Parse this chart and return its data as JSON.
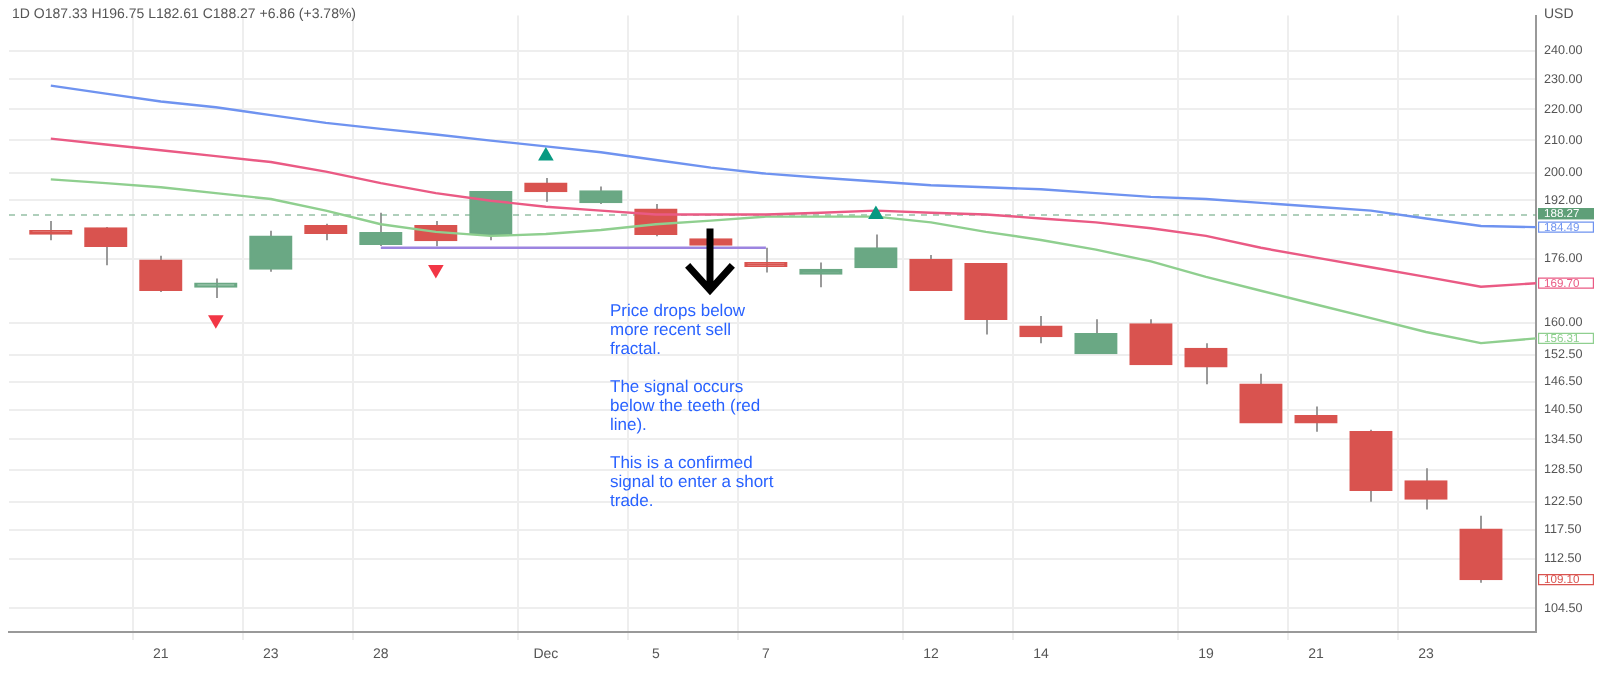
{
  "chart_data": {
    "type": "candlestick",
    "title": "1D O187.33 H196.75 L182.61 C188.27 +6.86 (+3.78%)",
    "ylabel": "USD",
    "categories": [
      null,
      null,
      "21",
      null,
      "23",
      null,
      "28",
      null,
      null,
      "Dec",
      null,
      "5",
      null,
      "7",
      null,
      null,
      "12",
      null,
      "14",
      null,
      null,
      "19",
      null,
      "21",
      null,
      "23",
      null,
      null
    ],
    "ohlc": [
      [
        183.5,
        186.2,
        180.9,
        182.6
      ],
      [
        184.3,
        184.5,
        174.3,
        179.3
      ],
      [
        175.6,
        176.8,
        167.5,
        167.9
      ],
      [
        168.7,
        170.9,
        166.0,
        169.7
      ],
      [
        173.3,
        183.5,
        172.6,
        182.0
      ],
      [
        184.9,
        185.4,
        180.9,
        182.8
      ],
      [
        179.8,
        188.5,
        179.4,
        183.0
      ],
      [
        184.9,
        186.2,
        179.3,
        180.8
      ],
      [
        182.5,
        194.5,
        180.9,
        194.5
      ],
      [
        197.0,
        198.5,
        191.6,
        194.5
      ],
      [
        191.4,
        196.0,
        191.0,
        194.7
      ],
      [
        189.5,
        191.0,
        182.0,
        182.5
      ],
      [
        181.3,
        183.5,
        177.6,
        179.6
      ],
      [
        175.0,
        178.9,
        172.4,
        174.0
      ],
      [
        172.0,
        175.0,
        168.7,
        173.2
      ],
      [
        173.7,
        182.5,
        173.7,
        178.9
      ],
      [
        175.8,
        177.0,
        167.8,
        167.9
      ],
      [
        174.7,
        174.8,
        157.2,
        160.8
      ],
      [
        159.2,
        161.6,
        155.2,
        156.7
      ],
      [
        152.8,
        160.8,
        152.8,
        157.4
      ],
      [
        159.7,
        160.8,
        150.3,
        150.3
      ],
      [
        154.0,
        155.2,
        146.0,
        149.8
      ],
      [
        146.0,
        148.3,
        137.8,
        137.8
      ],
      [
        139.3,
        141.2,
        136.0,
        137.8
      ],
      [
        136.0,
        136.4,
        122.5,
        124.6
      ],
      [
        126.4,
        128.8,
        121.1,
        123.0
      ],
      [
        117.6,
        120.0,
        108.6,
        109.1
      ],
      null
    ],
    "colors": [
      "#d9534f",
      "#d9534f",
      "#d9534f",
      "#6aa884",
      "#6aa884",
      "#d9534f",
      "#6aa884",
      "#d9534f",
      "#6aa884",
      "#d9534f",
      "#6aa884",
      "#d9534f",
      "#d9534f",
      "#d9534f",
      "#6aa884",
      "#6aa884",
      "#d9534f",
      "#d9534f",
      "#d9534f",
      "#6aa884",
      "#d9534f",
      "#d9534f",
      "#d9534f",
      "#d9534f",
      "#d9534f",
      "#d9534f",
      "#d9534f",
      null
    ],
    "series": [
      {
        "type": "line",
        "color": "#6f93f0",
        "values": [
          227.8,
          225.1,
          222.5,
          220.6,
          218.0,
          215.5,
          213.6,
          211.8,
          209.9,
          208.1,
          206.3,
          203.9,
          201.6,
          199.8,
          198.6,
          197.5,
          196.4,
          195.8,
          195.2,
          194.1,
          193.0,
          192.4,
          191.3,
          190.2,
          189.1,
          186.9,
          184.8,
          184.49
        ],
        "value_labels": [
          null,
          null,
          null,
          null,
          null,
          null,
          null,
          null,
          null,
          null,
          null,
          null,
          null,
          null,
          null,
          null,
          null,
          null,
          null,
          null,
          null,
          null,
          null,
          null,
          null,
          null,
          null,
          "184.49"
        ]
      },
      {
        "type": "line",
        "color": "#ea5a84",
        "values": [
          210.5,
          208.7,
          206.9,
          205.1,
          203.3,
          200.4,
          197.0,
          194.1,
          191.9,
          190.2,
          189.1,
          188.0,
          188.0,
          188.0,
          188.5,
          189.1,
          188.5,
          188.0,
          186.9,
          185.8,
          184.2,
          182.1,
          178.9,
          176.3,
          173.8,
          171.3,
          168.8,
          169.7
        ],
        "value_labels": [
          null,
          null,
          null,
          null,
          null,
          null,
          null,
          null,
          null,
          null,
          null,
          null,
          null,
          null,
          null,
          null,
          null,
          null,
          null,
          null,
          null,
          null,
          null,
          null,
          null,
          null,
          null,
          "169.70"
        ]
      },
      {
        "type": "line",
        "color": "#8fcf8f",
        "values": [
          198.1,
          197.0,
          195.8,
          194.1,
          192.4,
          189.1,
          185.3,
          183.2,
          182.1,
          182.6,
          183.7,
          185.3,
          186.3,
          187.4,
          187.4,
          187.4,
          185.8,
          183.2,
          181.0,
          178.4,
          175.3,
          171.3,
          167.8,
          164.4,
          161.1,
          157.8,
          155.2,
          156.31
        ],
        "value_labels": [
          null,
          null,
          null,
          null,
          null,
          null,
          null,
          null,
          null,
          null,
          null,
          null,
          null,
          null,
          null,
          null,
          null,
          null,
          null,
          null,
          null,
          null,
          null,
          null,
          null,
          null,
          null,
          "156.31"
        ]
      },
      {
        "type": "line",
        "color": "#9c84e0",
        "values": [
          null,
          null,
          null,
          null,
          null,
          null,
          178.9,
          178.9,
          178.9,
          178.9,
          178.9,
          178.9,
          178.9,
          178.9,
          null,
          null,
          null,
          null,
          null,
          null,
          null,
          null,
          null,
          null,
          null,
          null,
          null,
          null
        ]
      },
      {
        "type": "scatter",
        "color": "#089981",
        "marker": "triangle",
        "values": [
          null,
          null,
          null,
          null,
          null,
          null,
          null,
          null,
          null,
          205.1,
          null,
          null,
          null,
          null,
          null,
          188.0,
          null,
          null,
          null,
          null,
          null,
          null,
          null,
          null,
          null,
          null,
          null,
          null
        ]
      },
      {
        "type": "scatter",
        "color": "#f23645",
        "marker": "triangle",
        "values": [
          null,
          null,
          null,
          160.7,
          null,
          null,
          null,
          173.2,
          null,
          null,
          null,
          null,
          null,
          null,
          null,
          null,
          null,
          null,
          null,
          null,
          null,
          null,
          null,
          null,
          null,
          null,
          null,
          null
        ]
      }
    ],
    "log": true,
    "ylim": [
      100.9,
      252.9
    ],
    "yticks": [
      {
        "value": 104.5,
        "label": "104.50"
      },
      {
        "value": 112.5,
        "label": "112.50"
      },
      {
        "value": 117.5,
        "label": "117.50"
      },
      {
        "value": 122.5,
        "label": "122.50"
      },
      {
        "value": 128.5,
        "label": "128.50"
      },
      {
        "value": 134.5,
        "label": "134.50"
      },
      {
        "value": 140.5,
        "label": "140.50"
      },
      {
        "value": 146.5,
        "label": "146.50"
      },
      {
        "value": 152.5,
        "label": "152.50"
      },
      {
        "value": 160,
        "label": "160.00"
      },
      {
        "value": 176,
        "label": "176.00"
      },
      {
        "value": 192,
        "label": "192.00"
      },
      {
        "value": 200,
        "label": "200.00"
      },
      {
        "value": 210,
        "label": "210.00"
      },
      {
        "value": 220,
        "label": "220.00"
      },
      {
        "value": 230,
        "label": "230.00"
      },
      {
        "value": 240,
        "label": "240.00"
      }
    ],
    "ref_lines": [
      {
        "axis": "y",
        "value": 188.27,
        "label": "188.27",
        "color": "#5f9f78",
        "line_style": "dashed"
      }
    ],
    "value_labels": [
      null,
      null,
      null,
      null,
      null,
      null,
      null,
      null,
      null,
      null,
      null,
      null,
      null,
      null,
      null,
      null,
      null,
      null,
      null,
      null,
      null,
      null,
      null,
      null,
      null,
      null,
      "109.10",
      null
    ],
    "annotations": [
      "Price drops below\nmore recent sell\nfractal.\n\nThe signal occurs\nbelow the teeth (red\nline).\n\nThis is a confirmed\nsignal to enter a short\ntrade."
    ],
    "grid": true,
    "legend": false
  }
}
